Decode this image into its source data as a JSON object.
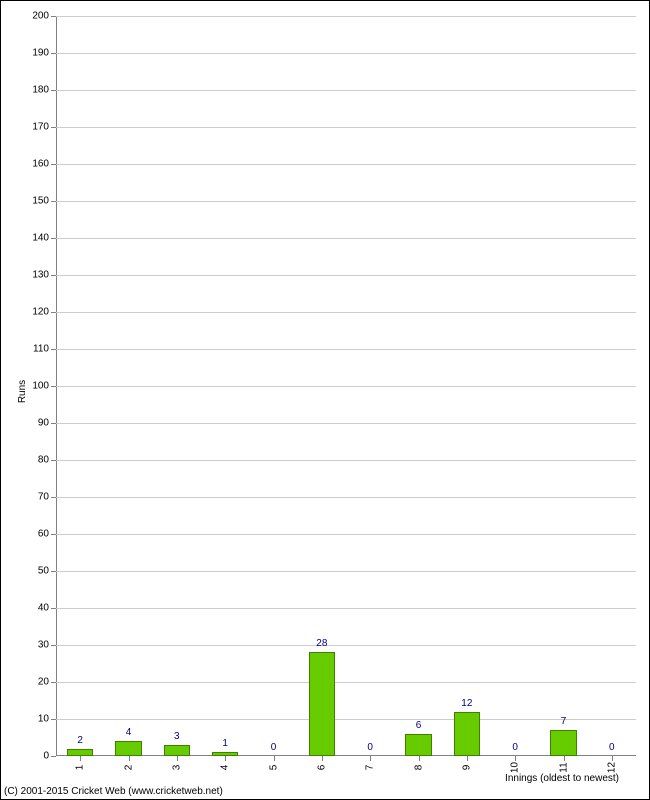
{
  "chart": {
    "type": "bar",
    "y_axis_title": "Runs",
    "x_axis_title": "Innings (oldest to newest)",
    "ylim": [
      0,
      200
    ],
    "ytick_step": 10,
    "bar_color": "#66cc00",
    "bar_border_color": "#408000",
    "bar_label_color": "#000080",
    "grid_color": "#cccccc",
    "axis_color": "#808080",
    "background_color": "#ffffff",
    "label_fontsize": 10,
    "categories": [
      "1",
      "2",
      "3",
      "4",
      "5",
      "6",
      "7",
      "8",
      "9",
      "10",
      "11",
      "12"
    ],
    "values": [
      2,
      4,
      3,
      1,
      0,
      28,
      0,
      6,
      12,
      0,
      7,
      0
    ],
    "bar_width_ratio": 0.55
  },
  "copyright": "(C) 2001-2015 Cricket Web (www.cricketweb.net)"
}
